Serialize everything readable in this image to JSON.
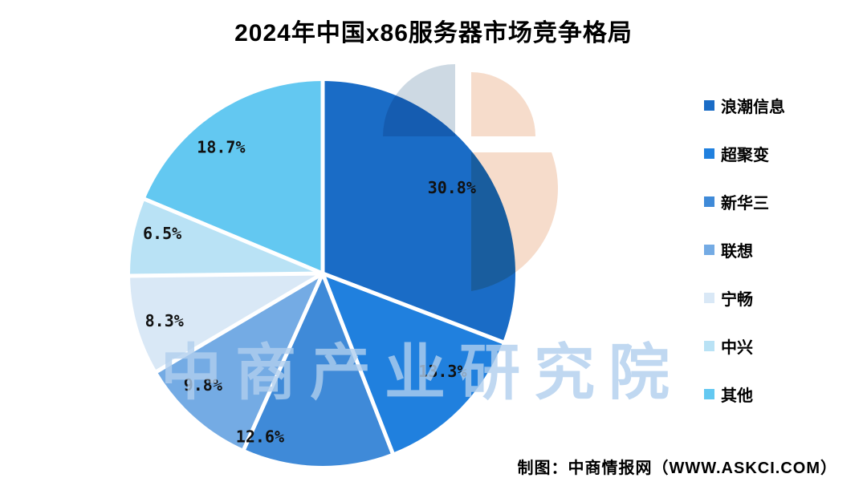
{
  "title": "2024年中国x86服务器市场竞争格局",
  "attribution": "制图：中商情报网（WWW.ASKCI.COM）",
  "watermark": "中商产业研究院",
  "chart_data": {
    "type": "pie",
    "title": "2024年中国x86服务器市场竞争格局",
    "labels": [
      "浪潮信息",
      "超聚变",
      "新华三",
      "联想",
      "宁畅",
      "中兴",
      "其他"
    ],
    "values": [
      30.8,
      13.3,
      12.6,
      9.8,
      8.3,
      6.5,
      18.7
    ],
    "value_labels": [
      "30.8%",
      "13.3%",
      "12.6%",
      "9.8%",
      "8.3%",
      "6.5%",
      "18.7%"
    ],
    "unit": "%",
    "colors": [
      "#1a6cc6",
      "#2080de",
      "#3f8ad8",
      "#74abe4",
      "#d9e8f6",
      "#b9e2f5",
      "#63c8f1"
    ],
    "start_angle_deg": 0,
    "direction": "clockwise",
    "legend_position": "right",
    "label_color": "#111111",
    "label_layout": {
      "angles_deg": [
        56.4,
        129.3,
        201,
        227,
        253.3,
        284,
        321.2
      ],
      "radii": [
        193,
        193,
        218,
        204,
        206,
        206,
        202
      ]
    }
  },
  "decoration": {
    "bluegray": "#cdd9e3",
    "peach": "#f6dccb"
  },
  "colors": {
    "background": "#ffffff",
    "separator": "#ffffff",
    "watermark": "rgba(176,206,238,0.8)",
    "text": "#000000"
  }
}
